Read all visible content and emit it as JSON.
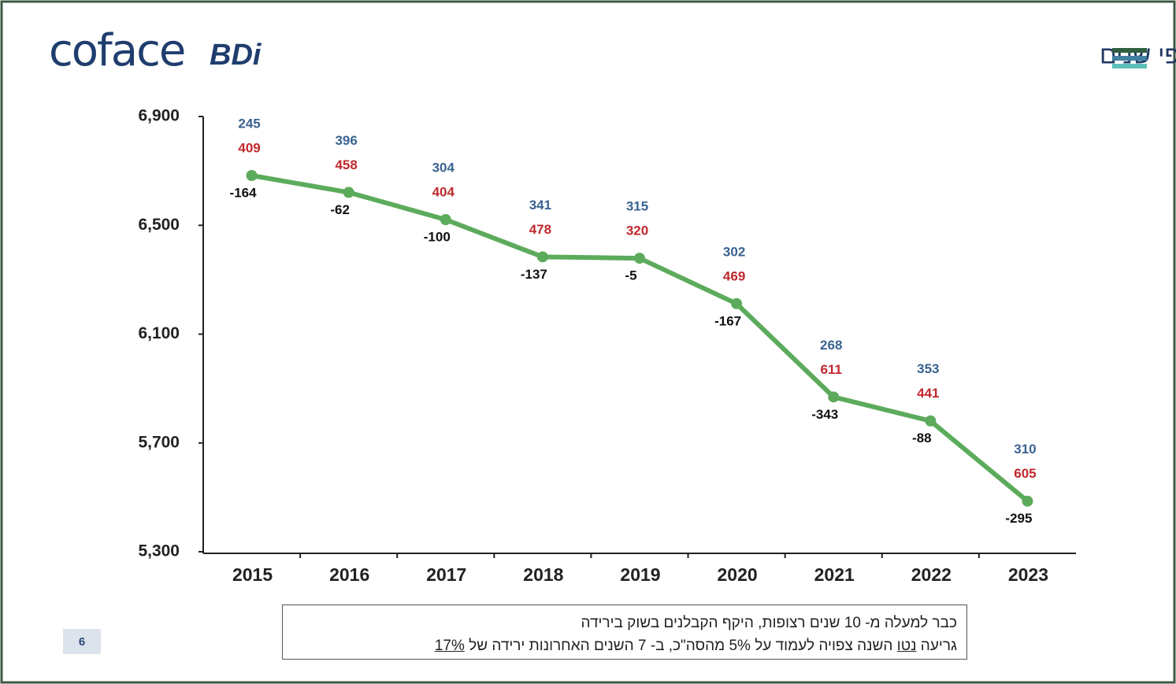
{
  "chart_data": {
    "type": "line",
    "title": "מספר הקבלנים שנוסדו ונגרעו - לפי שנים",
    "logo": {
      "main": "coface",
      "sub": "BDi"
    },
    "categories": [
      "2015",
      "2016",
      "2017",
      "2018",
      "2019",
      "2020",
      "2021",
      "2022",
      "2023"
    ],
    "series": [
      {
        "color": "#5cab5c",
        "values": [
          6683,
          6621,
          6521,
          6384,
          6379,
          6212,
          5869,
          5781,
          5486
        ]
      }
    ],
    "opened": {
      "color": "#3a6390",
      "values": [
        245,
        396,
        304,
        341,
        315,
        302,
        268,
        353,
        310
      ]
    },
    "closed": {
      "color": "#c0282d",
      "values": [
        409,
        458,
        404,
        478,
        320,
        469,
        611,
        441,
        605
      ]
    },
    "net": {
      "color": "#111111",
      "values": [
        -164,
        -62,
        -100,
        -137,
        -5,
        -167,
        -343,
        -88,
        -295
      ]
    },
    "ylim": [
      5300,
      6900
    ],
    "yticks": [
      {
        "value": 5300,
        "label": "5,300"
      },
      {
        "value": 5700,
        "label": "5,700"
      },
      {
        "value": 6100,
        "label": "6,100"
      },
      {
        "value": 6500,
        "label": "6,500"
      },
      {
        "value": 6900,
        "label": "6,900"
      }
    ],
    "note": {
      "line1": "כבר למעלה מ- 10 שנים רצופות, היקף הקבלנים בשוק בירידה",
      "line2": [
        "גריעה ",
        "נטו",
        " השנה צפויה לעמוד על 5% מהסה\"כ, ב- 7 השנים האחרונות ירידה של ",
        "17%"
      ]
    },
    "page_number": "6"
  }
}
